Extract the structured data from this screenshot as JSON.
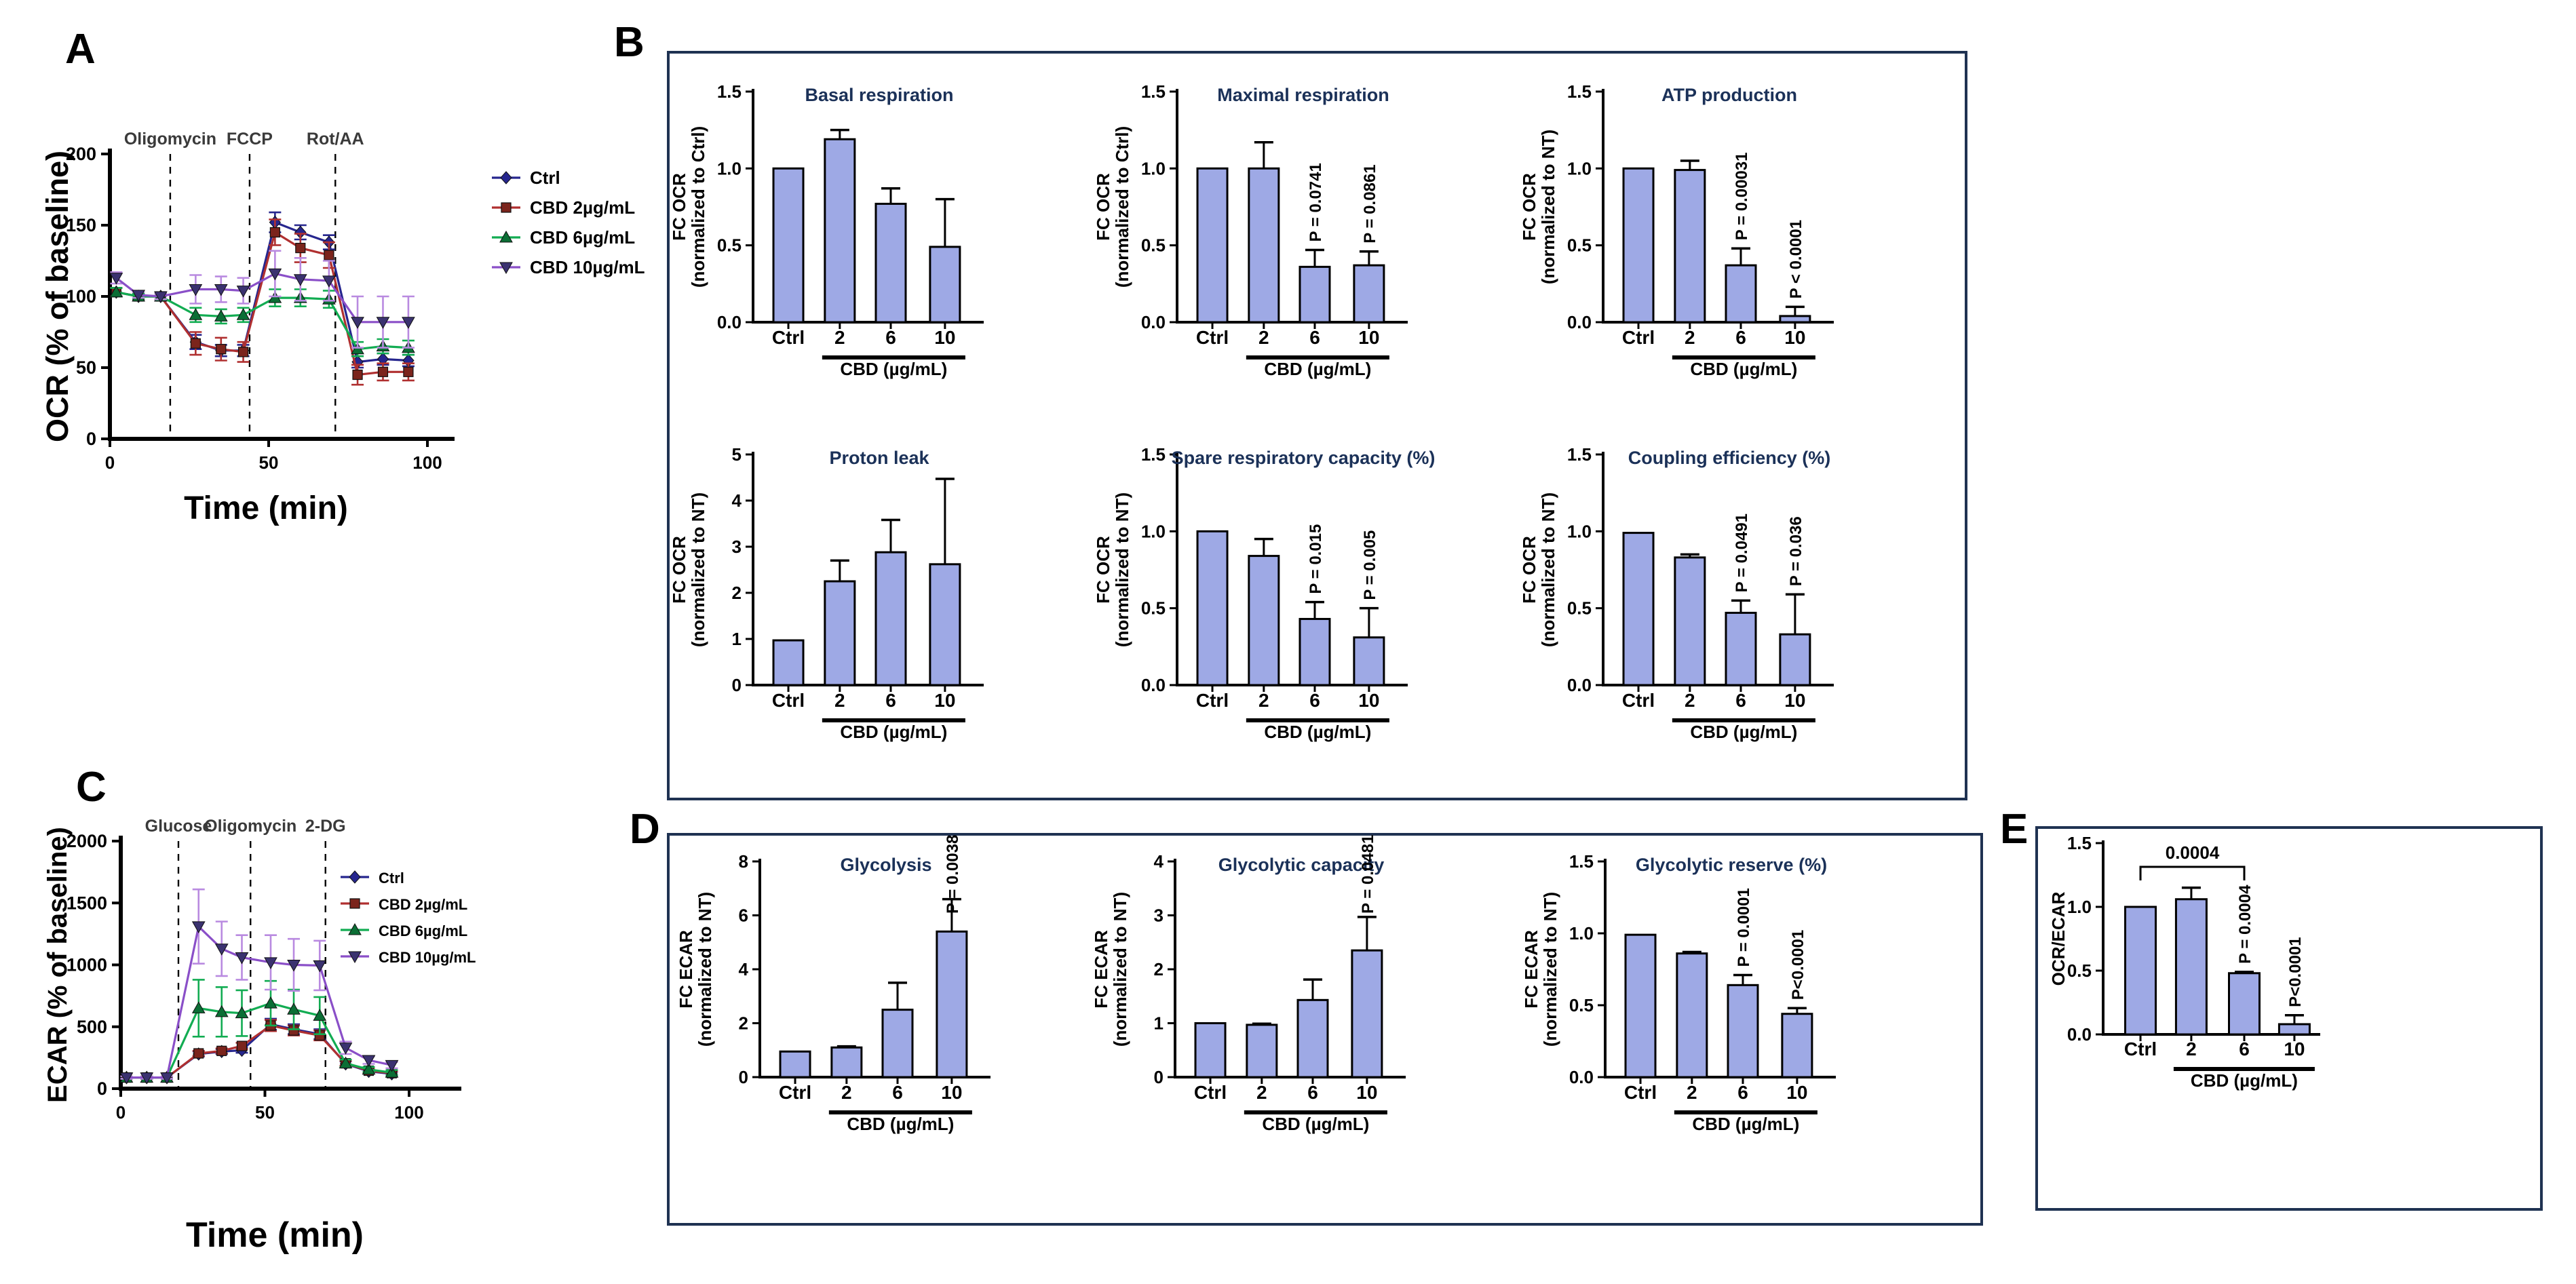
{
  "figure": {
    "panel_labels": {
      "a": "A",
      "b": "B",
      "c": "C",
      "d": "D",
      "e": "E"
    }
  },
  "colors": {
    "bar_fill": "#9ea9e5",
    "bar_stroke": "#000000",
    "box_border": "#1f3252",
    "title_text": "#1b3158",
    "axis_text": "#000000",
    "vline_label_text": "#3a3a3a",
    "ctrl": "#26268e",
    "cbd2": "#b03030",
    "cbd6": "#12ac52",
    "cbd10": "#8a4fc8",
    "cbd2_marker": "#7b241c",
    "cbd6_marker": "#0b6e35",
    "cbd10_marker": "#3b3270",
    "cbd10_err": "#b98ae0"
  },
  "chart_data": [
    {
      "id": "ocr_time",
      "panel": "A",
      "type": "line",
      "ylabel": "OCR (% of baseline)",
      "xlabel": "Time (min)",
      "ylim": [
        0,
        200
      ],
      "yticks": [
        0,
        50,
        100,
        150,
        200
      ],
      "ytick_labels": [
        "0",
        "50",
        "100",
        "150",
        "200"
      ],
      "xlim": [
        0,
        100
      ],
      "xticks": [
        0,
        50,
        100
      ],
      "xtick_labels": [
        "0",
        "50",
        "100"
      ],
      "grid": false,
      "legend_position": "right",
      "vlines": [
        {
          "x": 19,
          "label": "Oligomycin"
        },
        {
          "x": 44,
          "label": "FCCP"
        },
        {
          "x": 71,
          "label": "Rot/AA"
        }
      ],
      "x": [
        2,
        9,
        16,
        27,
        35,
        42,
        52,
        60,
        69,
        78,
        86,
        94
      ],
      "series": [
        {
          "name": "Ctrl",
          "color": "#26268e",
          "marker": "diamond",
          "values": [
            103,
            100,
            100,
            68,
            62,
            62,
            152,
            145,
            138,
            54,
            56,
            55
          ],
          "errors": [
            3,
            2,
            2,
            5,
            4,
            4,
            7,
            5,
            5,
            4,
            4,
            4
          ]
        },
        {
          "name": "CBD 2µg/mL",
          "color": "#b03030",
          "marker": "square",
          "marker_color": "#7b241c",
          "values": [
            103,
            100,
            100,
            67,
            63,
            61,
            145,
            134,
            129,
            45,
            47,
            47
          ],
          "errors": [
            3,
            2,
            2,
            8,
            8,
            7,
            9,
            10,
            9,
            7,
            6,
            6
          ]
        },
        {
          "name": "CBD 6µg/mL",
          "color": "#12ac52",
          "marker": "triangle",
          "marker_color": "#0b6e35",
          "values": [
            103,
            100,
            100,
            87,
            86,
            87,
            99,
            99,
            98,
            63,
            65,
            64
          ],
          "errors": [
            3,
            2,
            2,
            5,
            5,
            5,
            6,
            6,
            6,
            5,
            5,
            5
          ]
        },
        {
          "name": "CBD 10µg/mL",
          "color": "#8a4fc8",
          "marker": "triangle-down",
          "marker_color": "#3b3270",
          "err_color": "#b98ae0",
          "values": [
            113,
            101,
            100,
            105,
            105,
            104,
            116,
            112,
            111,
            82,
            82,
            82
          ],
          "errors": [
            4,
            2,
            2,
            10,
            9,
            9,
            16,
            15,
            14,
            18,
            18,
            18
          ]
        }
      ]
    },
    {
      "id": "ecar_time",
      "panel": "C",
      "type": "line",
      "ylabel": "ECAR (% of baseline)",
      "xlabel": "Time (min)",
      "ylim": [
        0,
        2000
      ],
      "yticks": [
        0,
        500,
        1000,
        1500,
        2000
      ],
      "ytick_labels": [
        "0",
        "500",
        "1000",
        "1500",
        "2000"
      ],
      "xlim": [
        0,
        100
      ],
      "xticks": [
        0,
        50,
        100
      ],
      "xtick_labels": [
        "0",
        "50",
        "100"
      ],
      "grid": false,
      "legend_position": "right",
      "vlines": [
        {
          "x": 20,
          "label": "Glucose"
        },
        {
          "x": 45,
          "label": "Oligomycin"
        },
        {
          "x": 71,
          "label": "2-DG"
        }
      ],
      "x": [
        2,
        9,
        16,
        27,
        35,
        42,
        52,
        60,
        69,
        78,
        86,
        94
      ],
      "series": [
        {
          "name": "Ctrl",
          "color": "#26268e",
          "marker": "diamond",
          "values": [
            90,
            90,
            90,
            280,
            300,
            310,
            520,
            480,
            440,
            200,
            140,
            120
          ],
          "errors": [
            10,
            10,
            10,
            20,
            20,
            20,
            45,
            40,
            40,
            20,
            15,
            15
          ]
        },
        {
          "name": "CBD 2µg/mL",
          "color": "#b03030",
          "marker": "square",
          "marker_color": "#7b241c",
          "values": [
            90,
            90,
            90,
            285,
            305,
            345,
            510,
            470,
            430,
            205,
            145,
            125
          ],
          "errors": [
            10,
            10,
            10,
            20,
            20,
            25,
            45,
            40,
            40,
            20,
            15,
            15
          ]
        },
        {
          "name": "CBD 6µg/mL",
          "color": "#12ac52",
          "marker": "triangle",
          "marker_color": "#0b6e35",
          "values": [
            90,
            90,
            90,
            650,
            620,
            610,
            690,
            640,
            590,
            205,
            155,
            130
          ],
          "errors": [
            10,
            10,
            10,
            230,
            200,
            185,
            180,
            160,
            150,
            30,
            20,
            20
          ]
        },
        {
          "name": "CBD 10µg/mL",
          "color": "#8a4fc8",
          "marker": "triangle-down",
          "marker_color": "#3b3270",
          "err_color": "#b98ae0",
          "values": [
            90,
            90,
            90,
            1310,
            1130,
            1060,
            1020,
            1000,
            995,
            330,
            230,
            190
          ],
          "errors": [
            10,
            10,
            10,
            300,
            220,
            180,
            220,
            210,
            200,
            50,
            30,
            25
          ]
        }
      ]
    },
    {
      "id": "basal",
      "panel": "B",
      "type": "bar",
      "title": "Basal respiration",
      "ylabel_lines": [
        "FC OCR",
        "(normalized to Ctrl)"
      ],
      "ymax": 1.5,
      "yticks": [
        0,
        0.5,
        1,
        1.5
      ],
      "ytick_labels": [
        "0.0",
        "0.5",
        "1.0",
        "1.5"
      ],
      "categories": [
        "Ctrl",
        "2",
        "6",
        "10"
      ],
      "values": [
        1.0,
        1.19,
        0.77,
        0.49
      ],
      "errors": [
        0,
        0.06,
        0.1,
        0.31
      ],
      "p_labels": [
        null,
        null,
        null,
        null
      ],
      "group_label": "CBD (µg/mL)"
    },
    {
      "id": "maximal",
      "panel": "B",
      "type": "bar",
      "title": "Maximal  respiration",
      "ylabel_lines": [
        "FC OCR",
        "(normalized to Ctrl)"
      ],
      "ymax": 1.5,
      "yticks": [
        0,
        0.5,
        1,
        1.5
      ],
      "ytick_labels": [
        "0.0",
        "0.5",
        "1.0",
        "1.5"
      ],
      "categories": [
        "Ctrl",
        "2",
        "6",
        "10"
      ],
      "values": [
        1.0,
        1.0,
        0.36,
        0.37
      ],
      "errors": [
        0,
        0.17,
        0.11,
        0.09
      ],
      "p_labels": [
        null,
        null,
        "P = 0.0741",
        "P = 0.0861"
      ],
      "group_label": "CBD (µg/mL)"
    },
    {
      "id": "atp",
      "panel": "B",
      "type": "bar",
      "title": "ATP  production",
      "ylabel_lines": [
        "FC OCR",
        "(normalized to NT)"
      ],
      "ymax": 1.5,
      "yticks": [
        0,
        0.5,
        1,
        1.5
      ],
      "ytick_labels": [
        "0.0",
        "0.5",
        "1.0",
        "1.5"
      ],
      "categories": [
        "Ctrl",
        "2",
        "6",
        "10"
      ],
      "values": [
        1.0,
        0.99,
        0.37,
        0.04
      ],
      "errors": [
        0,
        0.06,
        0.11,
        0.06
      ],
      "p_labels": [
        null,
        null,
        "P = 0.00031",
        "P < 0.0001"
      ],
      "group_label": "CBD (µg/mL)"
    },
    {
      "id": "proton",
      "panel": "B",
      "type": "bar",
      "title": "Proton leak",
      "ylabel_lines": [
        "FC OCR",
        "(normalized to NT)"
      ],
      "ymax": 5,
      "yticks": [
        0,
        1,
        2,
        3,
        4,
        5
      ],
      "ytick_labels": [
        "0",
        "1",
        "2",
        "3",
        "4",
        "5"
      ],
      "categories": [
        "Ctrl",
        "2",
        "6",
        "10"
      ],
      "values": [
        0.97,
        2.25,
        2.88,
        2.62
      ],
      "errors": [
        0,
        0.45,
        0.7,
        1.85
      ],
      "p_labels": [
        null,
        null,
        null,
        null
      ],
      "group_label": "CBD (µg/mL)"
    },
    {
      "id": "spare",
      "panel": "B",
      "type": "bar",
      "title": "Spare respiratory capacity (%)",
      "ylabel_lines": [
        "FC OCR",
        "(normalized to NT)"
      ],
      "ymax": 1.5,
      "yticks": [
        0,
        0.5,
        1,
        1.5
      ],
      "ytick_labels": [
        "0.0",
        "0.5",
        "1.0",
        "1.5"
      ],
      "categories": [
        "Ctrl",
        "2",
        "6",
        "10"
      ],
      "values": [
        1.0,
        0.84,
        0.43,
        0.31
      ],
      "errors": [
        0,
        0.11,
        0.11,
        0.19
      ],
      "p_labels": [
        null,
        null,
        "P = 0.015",
        "P = 0.005"
      ],
      "group_label": "CBD (µg/mL)"
    },
    {
      "id": "coupling",
      "panel": "B",
      "type": "bar",
      "title": "Coupling efficiency (%)",
      "ylabel_lines": [
        "FC OCR",
        "(normalized to NT)"
      ],
      "ymax": 1.5,
      "yticks": [
        0,
        0.5,
        1,
        1.5
      ],
      "ytick_labels": [
        "0.0",
        "0.5",
        "1.0",
        "1.5"
      ],
      "categories": [
        "Ctrl",
        "2",
        "6",
        "10"
      ],
      "values": [
        0.99,
        0.83,
        0.47,
        0.33
      ],
      "errors": [
        0,
        0.02,
        0.08,
        0.26
      ],
      "p_labels": [
        null,
        null,
        "P = 0.0491",
        "P = 0.036"
      ],
      "group_label": "CBD (µg/mL)"
    },
    {
      "id": "glycolysis",
      "panel": "D",
      "type": "bar",
      "title": "Glycolysis",
      "ylabel_lines": [
        "FC ECAR",
        "(normalized to NT)"
      ],
      "ymax": 8,
      "yticks": [
        0,
        2,
        4,
        6,
        8
      ],
      "ytick_labels": [
        "0",
        "2",
        "4",
        "6",
        "8"
      ],
      "categories": [
        "Ctrl",
        "2",
        "6",
        "10"
      ],
      "values": [
        0.95,
        1.1,
        2.5,
        5.4
      ],
      "errors": [
        0,
        0.04,
        1.0,
        1.2
      ],
      "p_labels": [
        null,
        null,
        null,
        "P = 0.0038"
      ],
      "group_label": "CBD (µg/mL)"
    },
    {
      "id": "glycap",
      "panel": "D",
      "type": "bar",
      "title": "Glycolytic capacity",
      "ylabel_lines": [
        "FC ECAR",
        "(normalized to NT)"
      ],
      "ymax": 4,
      "yticks": [
        0,
        1,
        2,
        3,
        4
      ],
      "ytick_labels": [
        "0",
        "1",
        "2",
        "3",
        "4"
      ],
      "categories": [
        "Ctrl",
        "2",
        "6",
        "10"
      ],
      "values": [
        1.0,
        0.97,
        1.43,
        2.35
      ],
      "errors": [
        0,
        0.02,
        0.38,
        0.62
      ],
      "p_labels": [
        null,
        null,
        null,
        "P = 0.0481"
      ],
      "group_label": "CBD (µg/mL)"
    },
    {
      "id": "glyres",
      "panel": "D",
      "type": "bar",
      "title": "Glycolytic reserve (%)",
      "ylabel_lines": [
        "FC ECAR",
        "(normalized to NT)"
      ],
      "ymax": 1.5,
      "yticks": [
        0,
        0.5,
        1,
        1.5
      ],
      "ytick_labels": [
        "0.0",
        "0.5",
        "1.0",
        "1.5"
      ],
      "categories": [
        "Ctrl",
        "2",
        "6",
        "10"
      ],
      "values": [
        0.99,
        0.86,
        0.64,
        0.44
      ],
      "errors": [
        0,
        0.01,
        0.07,
        0.04
      ],
      "p_labels": [
        null,
        null,
        "P = 0.0001",
        "P<0.0001"
      ],
      "group_label": "CBD (µg/mL)"
    },
    {
      "id": "ocr_ecar",
      "panel": "E",
      "type": "bar",
      "title": null,
      "ylabel_lines": [
        "OCR/ECAR"
      ],
      "ymax": 1.5,
      "yticks": [
        0,
        0.5,
        1,
        1.5
      ],
      "ytick_labels": [
        "0.0",
        "0.5",
        "1.0",
        "1.5"
      ],
      "categories": [
        "Ctrl",
        "2",
        "6",
        "10"
      ],
      "values": [
        1.0,
        1.06,
        0.48,
        0.08
      ],
      "errors": [
        0,
        0.09,
        0.01,
        0.07
      ],
      "p_labels": [
        null,
        null,
        "P = 0.0004",
        "P<0.0001"
      ],
      "group_label": "CBD (µg/mL)",
      "bracket": {
        "from": 0,
        "to": 2,
        "label": "0.0004"
      }
    }
  ]
}
